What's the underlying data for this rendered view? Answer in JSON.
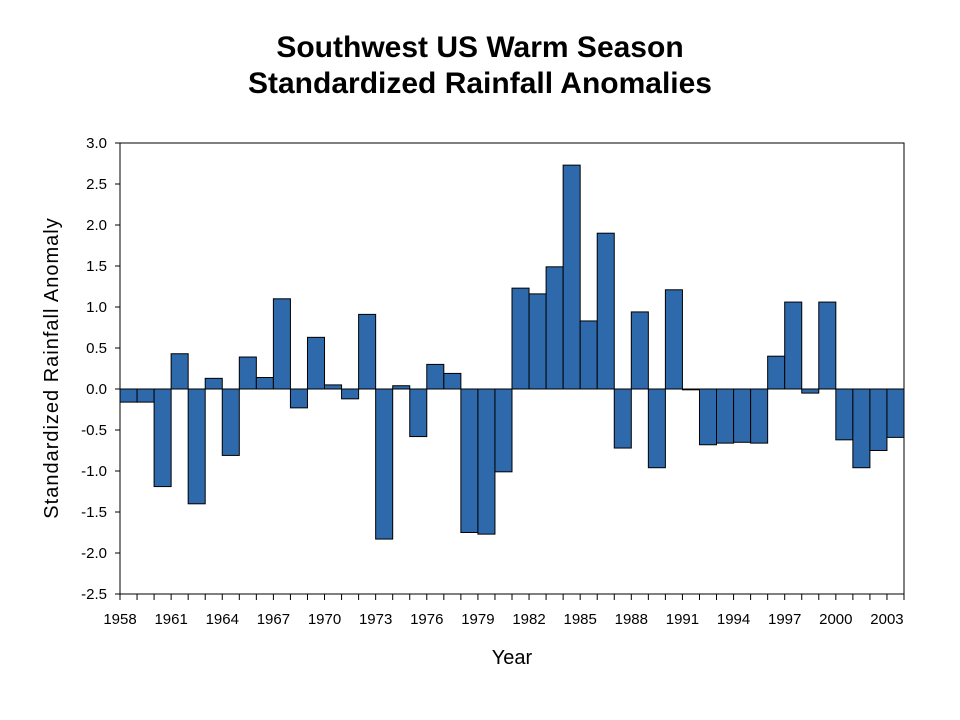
{
  "chart_data": {
    "type": "bar",
    "title": [
      "Southwest US Warm Season",
      "Standardized Rainfall Anomalies"
    ],
    "xlabel": "Year",
    "ylabel": "Standardized Rainfall Anomaly",
    "ylim": [
      -2.5,
      3.0
    ],
    "yticks": [
      "3.0",
      "2.5",
      "2.0",
      "1.5",
      "1.0",
      "0.5",
      "0.0",
      "-0.5",
      "-1.0",
      "-1.5",
      "-2.0",
      "-2.5"
    ],
    "xtick_labels": [
      "1958",
      "1961",
      "1964",
      "1967",
      "1970",
      "1973",
      "1976",
      "1979",
      "1982",
      "1985",
      "1988",
      "1991",
      "1994",
      "1997",
      "2000",
      "2003"
    ],
    "grid": false,
    "bar_color": "#2E6AAB",
    "categories": [
      1958,
      1959,
      1960,
      1961,
      1962,
      1963,
      1964,
      1965,
      1966,
      1967,
      1968,
      1969,
      1970,
      1971,
      1972,
      1973,
      1974,
      1975,
      1976,
      1977,
      1978,
      1979,
      1980,
      1981,
      1982,
      1983,
      1984,
      1985,
      1986,
      1987,
      1988,
      1989,
      1990,
      1991,
      1992,
      1993,
      1994,
      1995,
      1996,
      1997,
      1998,
      1999,
      2000,
      2001,
      2002,
      2003
    ],
    "values": [
      -0.16,
      -0.16,
      -1.19,
      0.43,
      -1.4,
      0.13,
      -0.81,
      0.39,
      0.14,
      1.1,
      -0.23,
      0.63,
      0.05,
      -0.12,
      0.91,
      -1.83,
      0.04,
      -0.58,
      0.3,
      0.19,
      -1.75,
      -1.77,
      -1.01,
      1.23,
      1.16,
      1.49,
      2.73,
      0.83,
      1.9,
      -0.72,
      0.94,
      -0.96,
      1.21,
      -0.01,
      -0.68,
      -0.66,
      -0.65,
      -0.66,
      0.4,
      1.06,
      -0.05,
      1.06,
      -0.62,
      -0.96,
      -0.75,
      -0.59
    ]
  }
}
